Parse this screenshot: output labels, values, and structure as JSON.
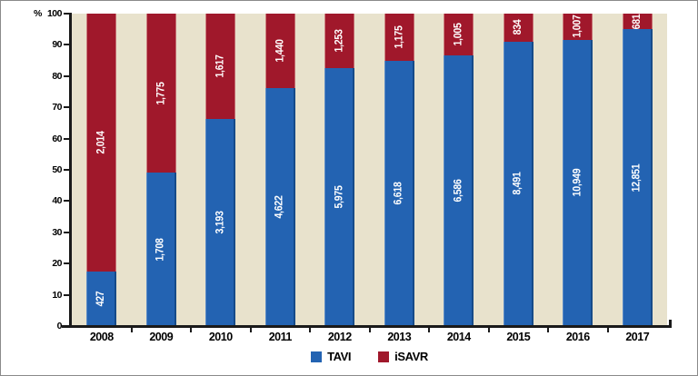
{
  "chart_data": {
    "type": "bar",
    "subtype": "stacked-100-percent",
    "title": "",
    "unit": "%",
    "categories": [
      "2008",
      "2009",
      "2010",
      "2011",
      "2012",
      "2013",
      "2014",
      "2015",
      "2016",
      "2017"
    ],
    "series": [
      {
        "name": "TAVI",
        "color": "#2363B2",
        "position": "bottom",
        "values": [
          427,
          1708,
          3193,
          4622,
          5975,
          6618,
          6586,
          8491,
          10949,
          12851
        ],
        "labels": [
          "427",
          "1,708",
          "3,193",
          "4,622",
          "5,975",
          "6,618",
          "6,586",
          "8,491",
          "10,949",
          "12,851"
        ]
      },
      {
        "name": "iSAVR",
        "color": "#A0182B",
        "position": "top",
        "values": [
          2014,
          1775,
          1617,
          1440,
          1253,
          1175,
          1005,
          834,
          1007,
          681
        ],
        "labels": [
          "2,014",
          "1,775",
          "1,617",
          "1,440",
          "1,253",
          "1,175",
          "1,005",
          "834",
          "1,007",
          "681"
        ]
      }
    ],
    "ylim": [
      0,
      100
    ],
    "yticks": [
      0,
      10,
      20,
      30,
      40,
      50,
      60,
      70,
      80,
      90,
      100
    ],
    "grid": false,
    "plot_bg": "#E8E2CC",
    "axis_color": "#1a1a1a",
    "legend_position": "bottom-center"
  },
  "legend": {
    "items": [
      {
        "label": "TAVI",
        "color": "#2363B2"
      },
      {
        "label": "iSAVR",
        "color": "#A0182B"
      }
    ]
  }
}
